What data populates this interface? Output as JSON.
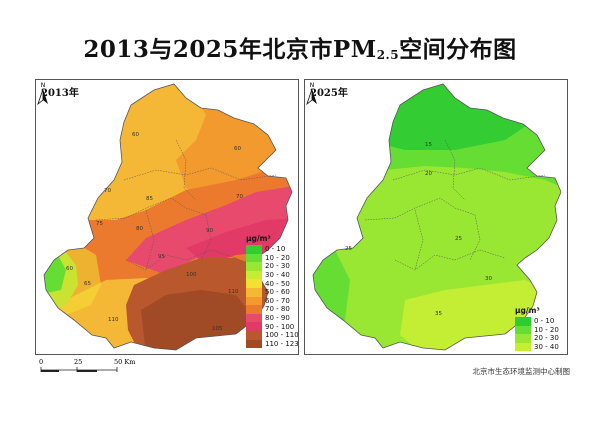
{
  "title": {
    "main": "2013与2025年北京市PM",
    "sub": "2.5",
    "suffix": "空间分布图"
  },
  "panels": [
    {
      "label": "2013年"
    },
    {
      "label": "2025年"
    }
  ],
  "north_label": "N",
  "legend_unit": "μg/m³",
  "legend_2013": [
    {
      "label": "0 - 10",
      "color": "#33cc33"
    },
    {
      "label": "10 - 20",
      "color": "#66dd33"
    },
    {
      "label": "20 - 30",
      "color": "#99e633"
    },
    {
      "label": "30 - 40",
      "color": "#c4ee33"
    },
    {
      "label": "40 - 50",
      "color": "#f2e033"
    },
    {
      "label": "50 - 60",
      "color": "#f5b836"
    },
    {
      "label": "60 - 70",
      "color": "#f29a2e"
    },
    {
      "label": "70 - 80",
      "color": "#ec7a2e"
    },
    {
      "label": "80 - 90",
      "color": "#e84a6e"
    },
    {
      "label": "90 - 100",
      "color": "#e23a66"
    },
    {
      "label": "100 - 110",
      "color": "#b9582c"
    },
    {
      "label": "110 - 123",
      "color": "#a04a26"
    }
  ],
  "legend_2025": [
    {
      "label": "0 - 10",
      "color": "#2fcc2f"
    },
    {
      "label": "10 - 20",
      "color": "#66dd33"
    },
    {
      "label": "20 - 30",
      "color": "#99e633"
    },
    {
      "label": "30 - 40",
      "color": "#c4ee33"
    }
  ],
  "contour_labels_2013": [
    "60",
    "65",
    "70",
    "75",
    "80",
    "85",
    "90",
    "95",
    "100",
    "105",
    "110"
  ],
  "contour_labels_2025": [
    "15",
    "20",
    "25",
    "30",
    "35"
  ],
  "scale": {
    "ticks": [
      "0",
      "25",
      "50 Km"
    ]
  },
  "credit": "北京市生态环境监测中心制图"
}
